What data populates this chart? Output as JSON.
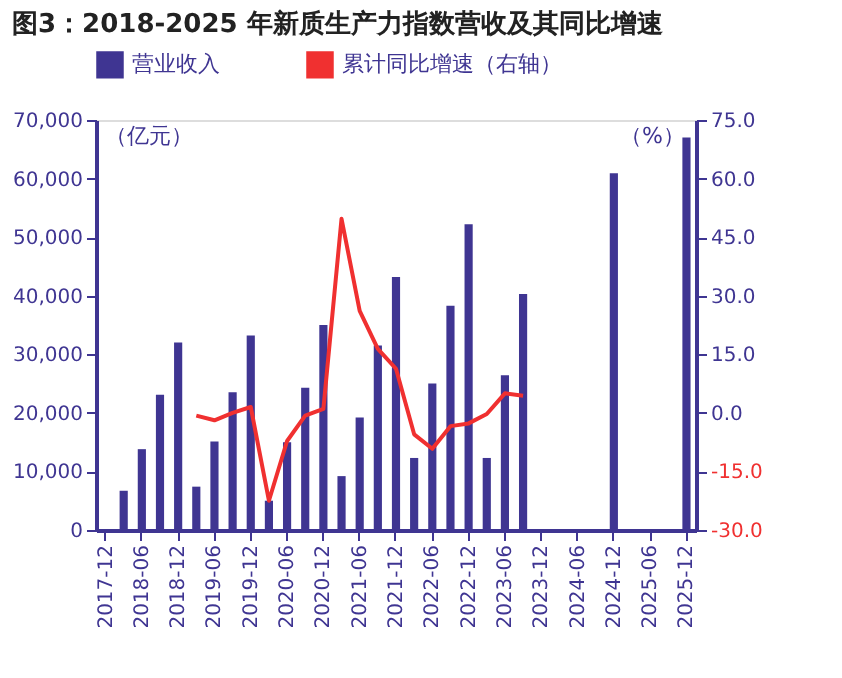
{
  "chart_data": {
    "type": "bar",
    "title": "图3：2018-2025 年新质生产力指数营收及其同比增速",
    "categories": [
      "2017-12",
      null,
      "2018-06",
      null,
      "2018-12",
      null,
      "2019-06",
      null,
      "2019-12",
      null,
      "2020-06",
      null,
      "2020-12",
      null,
      "2021-06",
      null,
      "2021-12",
      null,
      "2022-06",
      null,
      "2022-12",
      null,
      "2023-06",
      null,
      "2023-12",
      null,
      "2024-06",
      null,
      "2024-12",
      null,
      "2025-06",
      null,
      "2025-12"
    ],
    "series": [
      {
        "name": "营业收入",
        "color": "#3f3592",
        "values": [
          null,
          6700,
          13800,
          23100,
          32000,
          7400,
          15100,
          23500,
          33200,
          5000,
          15000,
          24300,
          35000,
          9200,
          19200,
          31500,
          43200,
          12300,
          25000,
          38300,
          52200,
          12300,
          26400,
          40300,
          null,
          null,
          null,
          null,
          60900,
          null,
          null,
          null,
          67000
        ]
      },
      {
        "name": "累计同比增速（右轴）",
        "type": "line",
        "axis": "y2",
        "color": "#f03030",
        "values": [
          null,
          null,
          null,
          null,
          null,
          -0.7,
          -1.9,
          0,
          1.5,
          -22.5,
          -7.2,
          -0.7,
          1.0,
          49.7,
          26.1,
          16.4,
          11.3,
          -5.5,
          -9.2,
          -3.4,
          -2.7,
          -0.3,
          5.0,
          4.4,
          null,
          null,
          null,
          null,
          null,
          null,
          null,
          null,
          null
        ]
      }
    ],
    "ylabel": "（亿元）",
    "y2label": "（%）",
    "ylim": [
      0,
      70000
    ],
    "yticks": [
      0,
      {
        "value": 10000,
        "label": "10,000"
      },
      {
        "value": 20000,
        "label": "20,000"
      },
      {
        "value": 30000,
        "label": "30,000"
      },
      {
        "value": 40000,
        "label": "40,000"
      },
      {
        "value": 50000,
        "label": "50,000"
      },
      {
        "value": 60000,
        "label": "60,000"
      },
      {
        "value": 70000,
        "label": "70,000"
      }
    ],
    "y2lim": [
      -30,
      75
    ],
    "y2ticks": [
      {
        "value": -30,
        "label": "-30.0"
      },
      {
        "value": -15,
        "label": "-15.0"
      },
      {
        "value": 0,
        "label": "0.0"
      },
      {
        "value": 15,
        "label": "15.0"
      },
      {
        "value": 30,
        "label": "30.0"
      },
      {
        "value": 45,
        "label": "45.0"
      },
      {
        "value": 60,
        "label": "60.0"
      },
      {
        "value": 75,
        "label": "75.0"
      }
    ],
    "legend": "top",
    "grid": false
  }
}
